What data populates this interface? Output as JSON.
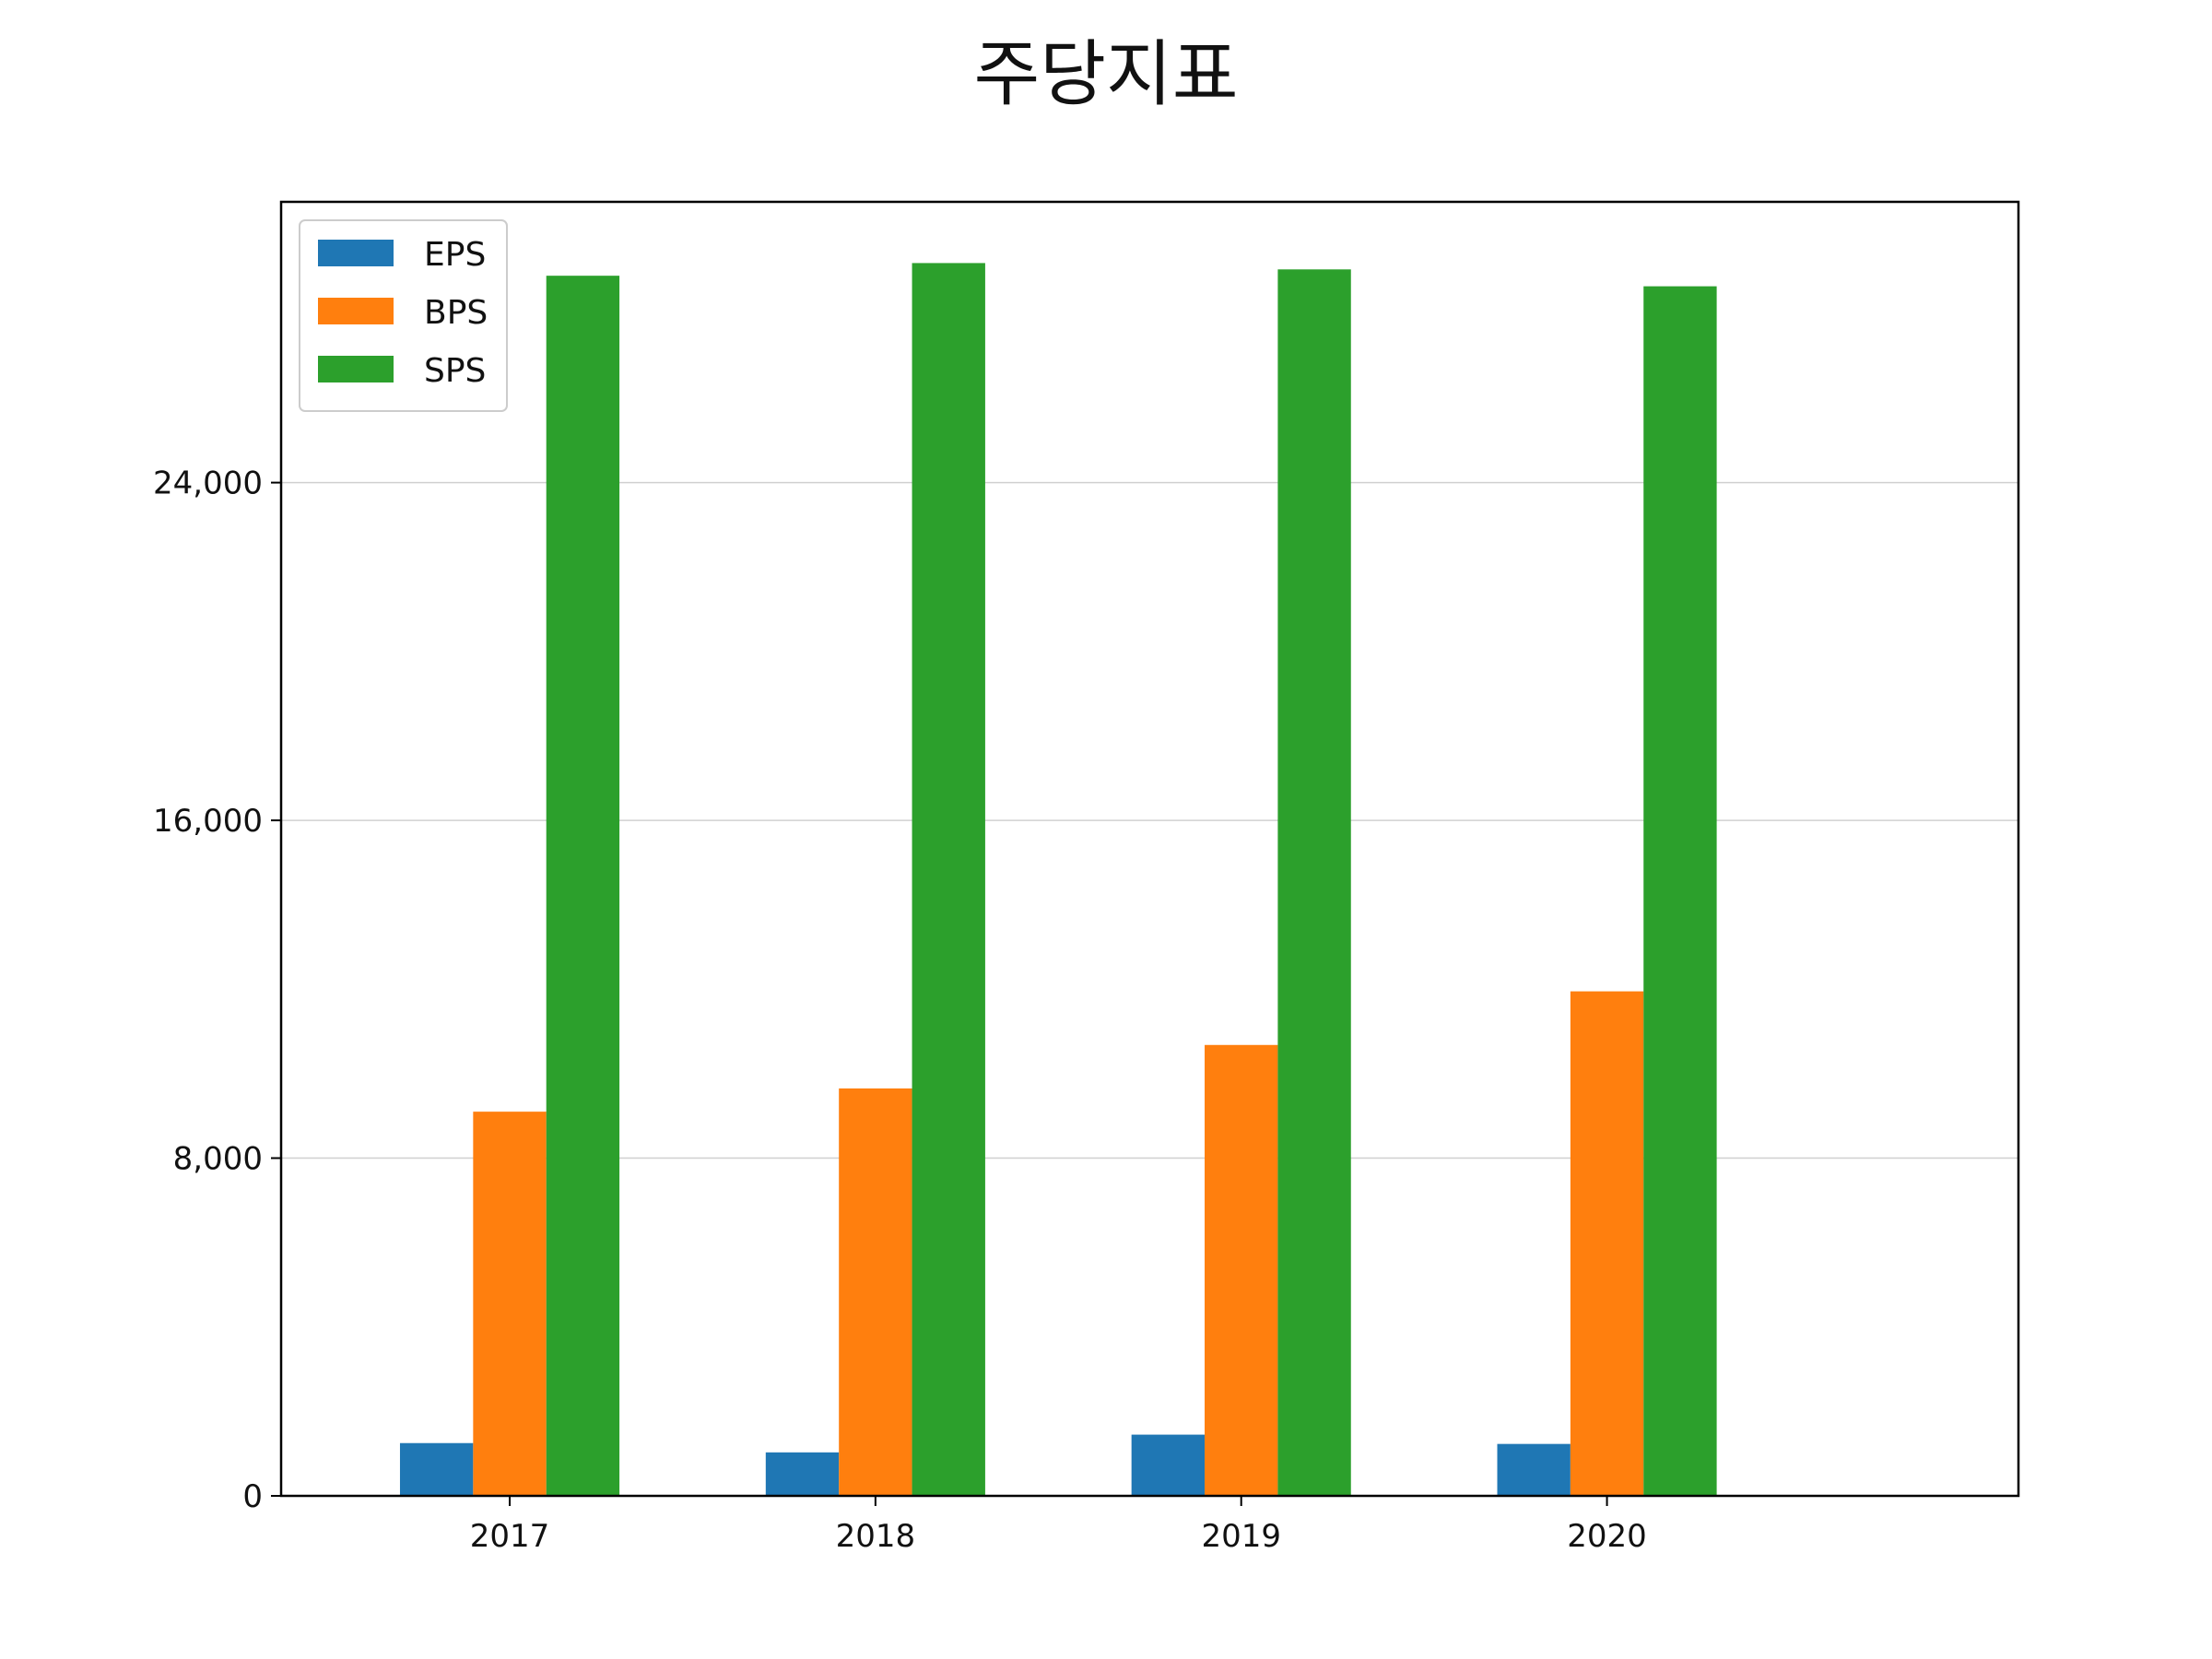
{
  "chart_data": {
    "type": "bar",
    "title": "주당지표",
    "xlabel": "",
    "ylabel": "",
    "categories": [
      "2017",
      "2018",
      "2019",
      "2020"
    ],
    "series": [
      {
        "name": "EPS",
        "color": "#1f77b4",
        "values": [
          1250,
          1030,
          1450,
          1230
        ]
      },
      {
        "name": "BPS",
        "color": "#ff7f0e",
        "values": [
          9100,
          9650,
          10680,
          11950
        ]
      },
      {
        "name": "SPS",
        "color": "#2ca02c",
        "values": [
          28900,
          29200,
          29050,
          28650
        ]
      }
    ],
    "yticks": [
      0,
      8000,
      16000,
      24000
    ],
    "ytick_labels": [
      "0",
      "8,000",
      "16,000",
      "24,000"
    ],
    "ylim": [
      0,
      30650
    ],
    "grid": "y",
    "legend_position": "upper-left"
  }
}
